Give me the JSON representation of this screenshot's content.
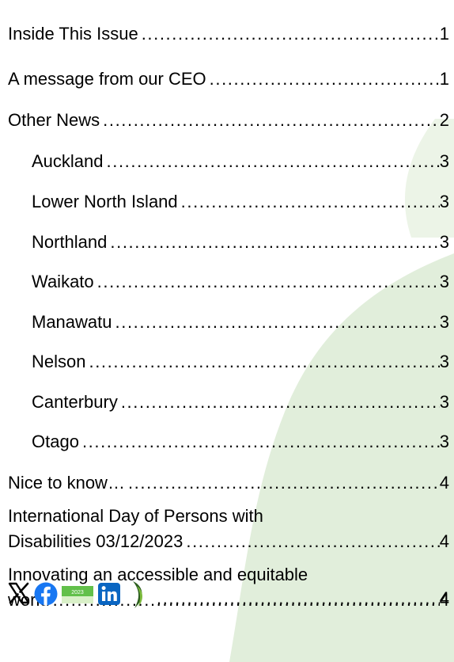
{
  "toc": {
    "entries": [
      {
        "title": "Inside This Issue",
        "page": "1"
      },
      {
        "title": "A message from our CEO",
        "page": "1"
      },
      {
        "title": "Other News",
        "page": "2"
      },
      {
        "title": "Auckland",
        "page": "3"
      },
      {
        "title": "Lower North Island",
        "page": "3"
      },
      {
        "title": "Northland",
        "page": "3"
      },
      {
        "title": "Waikato",
        "page": "3"
      },
      {
        "title": "Manawatu",
        "page": "3"
      },
      {
        "title": "Nelson",
        "page": "3"
      },
      {
        "title": "Canterbury",
        "page": "3"
      },
      {
        "title": "Otago",
        "page": "3"
      },
      {
        "title": "Nice to know…",
        "page": "4"
      },
      {
        "title_line1": "International Day of Persons with",
        "title_line2": "Disabilities 03/12/2023",
        "page": "4"
      },
      {
        "title_line1": "Innovating an accessible and equitable",
        "title_line2": "world",
        "page": "4"
      }
    ],
    "social_row": {
      "icons": [
        "x-logo-icon",
        "facebook-icon",
        "day-of-persons-badge-icon",
        "linkedin-icon",
        "brand-swoosh-icon"
      ],
      "badge_year": "2023",
      "page": "4"
    }
  },
  "colors": {
    "background_leaf": "#e1eedb",
    "facebook": "#1877f2",
    "linkedin": "#0a66c2",
    "badge_green": "#62c04a",
    "swoosh_dark": "#2b5d1e",
    "swoosh_light": "#7dbb3d"
  }
}
